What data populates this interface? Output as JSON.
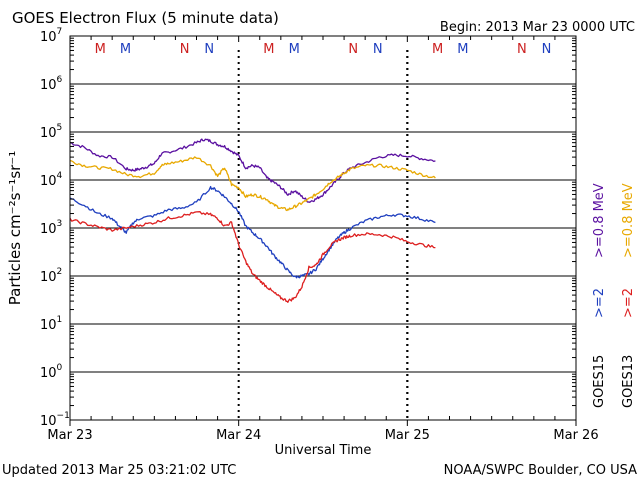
{
  "chart_data": {
    "type": "line",
    "title": "GOES Electron Flux (5 minute data)",
    "begin_label": "Begin: 2013 Mar 23 0000 UTC",
    "xlabel": "Universal Time",
    "ylabel": "Particles cm⁻²s⁻¹sr⁻¹",
    "y_scale": "log",
    "ylim": [
      0.1,
      10000000
    ],
    "y_tick_labels": [
      {
        "base": "10",
        "exp": "7"
      },
      {
        "base": "10",
        "exp": "6"
      },
      {
        "base": "10",
        "exp": "5"
      },
      {
        "base": "10",
        "exp": "4"
      },
      {
        "base": "10",
        "exp": "3"
      },
      {
        "base": "10",
        "exp": "2"
      },
      {
        "base": "10",
        "exp": "1"
      },
      {
        "base": "10",
        "exp": "0"
      },
      {
        "base": "10",
        "exp": "-1"
      }
    ],
    "xlim_hours": [
      0,
      72
    ],
    "x_tick_labels": [
      "Mar 23",
      "Mar 24",
      "Mar 25",
      "Mar 26"
    ],
    "threshold": 1000,
    "markers": [
      {
        "label": "M",
        "color": "#cc2020",
        "hour": 4.3
      },
      {
        "label": "M",
        "color": "#1f3fbf",
        "hour": 7.9
      },
      {
        "label": "N",
        "color": "#cc2020",
        "hour": 16.3
      },
      {
        "label": "N",
        "color": "#1f3fbf",
        "hour": 19.8
      },
      {
        "label": "M",
        "color": "#cc2020",
        "hour": 28.3
      },
      {
        "label": "M",
        "color": "#1f3fbf",
        "hour": 31.9
      },
      {
        "label": "N",
        "color": "#cc2020",
        "hour": 40.3
      },
      {
        "label": "N",
        "color": "#1f3fbf",
        "hour": 43.8
      },
      {
        "label": "M",
        "color": "#cc2020",
        "hour": 52.3
      },
      {
        "label": "M",
        "color": "#1f3fbf",
        "hour": 55.9
      },
      {
        "label": "N",
        "color": "#cc2020",
        "hour": 64.3
      },
      {
        "label": "N",
        "color": "#1f3fbf",
        "hour": 67.8
      }
    ],
    "day_separators_hours": [
      24,
      48
    ],
    "side_labels": {
      "goes15": "GOES15",
      "goes13": "GOES13",
      "purple": ">=0.8  MeV",
      "orange": ">=0.8  MeV",
      "blue": ">=2",
      "red": ">=2"
    },
    "colors": {
      "purple": "#5a10a0",
      "orange": "#e8a800",
      "blue": "#1f3fbf",
      "red": "#dd1f1f",
      "threshold": "#000000"
    },
    "series": [
      {
        "name": "GOES15 >=0.8 MeV",
        "color": "#5a10a0",
        "points": [
          [
            0,
            60000
          ],
          [
            2,
            48000
          ],
          [
            4,
            32000
          ],
          [
            6,
            30000
          ],
          [
            8,
            17000
          ],
          [
            9,
            16000
          ],
          [
            10,
            17000
          ],
          [
            11,
            19000
          ],
          [
            12,
            22000
          ],
          [
            13,
            35000
          ],
          [
            14,
            38000
          ],
          [
            16,
            46000
          ],
          [
            18,
            60000
          ],
          [
            19,
            70000
          ],
          [
            20,
            65000
          ],
          [
            21,
            55000
          ],
          [
            22,
            50000
          ],
          [
            23,
            40000
          ],
          [
            24,
            32000
          ],
          [
            25,
            18000
          ],
          [
            26,
            20000
          ],
          [
            27,
            18000
          ],
          [
            28,
            11000
          ],
          [
            29,
            9000
          ],
          [
            30,
            7000
          ],
          [
            31,
            5000
          ],
          [
            32,
            6000
          ],
          [
            33,
            4500
          ],
          [
            34,
            3500
          ],
          [
            35,
            4000
          ],
          [
            36,
            5000
          ],
          [
            37,
            7000
          ],
          [
            38,
            10000
          ],
          [
            39,
            14000
          ],
          [
            40,
            18000
          ],
          [
            42,
            23000
          ],
          [
            44,
            30000
          ],
          [
            46,
            33000
          ],
          [
            48,
            32000
          ],
          [
            50,
            28000
          ],
          [
            52,
            25000
          ]
        ]
      },
      {
        "name": "GOES13 >=0.8 MeV",
        "color": "#e8a800",
        "points": [
          [
            0,
            25000
          ],
          [
            2,
            20000
          ],
          [
            4,
            18000
          ],
          [
            6,
            17000
          ],
          [
            8,
            13000
          ],
          [
            10,
            12000
          ],
          [
            12,
            14000
          ],
          [
            13,
            20000
          ],
          [
            14,
            22000
          ],
          [
            16,
            25000
          ],
          [
            18,
            30000
          ],
          [
            20,
            20000
          ],
          [
            21,
            12000
          ],
          [
            22,
            18000
          ],
          [
            23,
            8000
          ],
          [
            24,
            7000
          ],
          [
            25,
            4500
          ],
          [
            26,
            5000
          ],
          [
            27,
            4500
          ],
          [
            28,
            4000
          ],
          [
            29,
            3000
          ],
          [
            30,
            2600
          ],
          [
            31,
            2400
          ],
          [
            32,
            2800
          ],
          [
            33,
            3300
          ],
          [
            34,
            4000
          ],
          [
            35,
            5000
          ],
          [
            36,
            6500
          ],
          [
            37,
            9000
          ],
          [
            38,
            11000
          ],
          [
            39,
            14000
          ],
          [
            40,
            17000
          ],
          [
            42,
            20000
          ],
          [
            44,
            20000
          ],
          [
            46,
            18000
          ],
          [
            48,
            16000
          ],
          [
            50,
            13000
          ],
          [
            52,
            11000
          ]
        ]
      },
      {
        "name": "GOES15 >=2 MeV",
        "color": "#1f3fbf",
        "points": [
          [
            0,
            4200
          ],
          [
            2,
            3000
          ],
          [
            4,
            2000
          ],
          [
            6,
            1600
          ],
          [
            7,
            1100
          ],
          [
            8,
            800
          ],
          [
            9,
            1300
          ],
          [
            10,
            1600
          ],
          [
            12,
            1800
          ],
          [
            14,
            2400
          ],
          [
            16,
            2600
          ],
          [
            18,
            3400
          ],
          [
            20,
            7000
          ],
          [
            21,
            6000
          ],
          [
            22,
            4500
          ],
          [
            23,
            3200
          ],
          [
            24,
            2200
          ],
          [
            25,
            1100
          ],
          [
            26,
            800
          ],
          [
            27,
            600
          ],
          [
            28,
            420
          ],
          [
            29,
            270
          ],
          [
            30,
            190
          ],
          [
            31,
            130
          ],
          [
            32,
            95
          ],
          [
            33,
            100
          ],
          [
            34,
            110
          ],
          [
            35,
            140
          ],
          [
            36,
            230
          ],
          [
            37,
            380
          ],
          [
            38,
            600
          ],
          [
            39,
            800
          ],
          [
            40,
            1000
          ],
          [
            42,
            1400
          ],
          [
            44,
            1700
          ],
          [
            46,
            1900
          ],
          [
            48,
            1800
          ],
          [
            50,
            1550
          ],
          [
            52,
            1300
          ]
        ]
      },
      {
        "name": "GOES13 >=2 MeV",
        "color": "#dd1f1f",
        "points": [
          [
            0,
            1500
          ],
          [
            2,
            1250
          ],
          [
            4,
            1050
          ],
          [
            6,
            900
          ],
          [
            8,
            1000
          ],
          [
            10,
            1150
          ],
          [
            12,
            1300
          ],
          [
            14,
            1600
          ],
          [
            16,
            1800
          ],
          [
            18,
            2100
          ],
          [
            20,
            1900
          ],
          [
            21,
            1600
          ],
          [
            22,
            1100
          ],
          [
            23,
            1300
          ],
          [
            24,
            450
          ],
          [
            25,
            200
          ],
          [
            26,
            110
          ],
          [
            27,
            80
          ],
          [
            28,
            60
          ],
          [
            29,
            45
          ],
          [
            30,
            35
          ],
          [
            31,
            30
          ],
          [
            32,
            35
          ],
          [
            33,
            60
          ],
          [
            34,
            150
          ],
          [
            35,
            170
          ],
          [
            36,
            280
          ],
          [
            37,
            420
          ],
          [
            38,
            550
          ],
          [
            39,
            630
          ],
          [
            40,
            700
          ],
          [
            42,
            750
          ],
          [
            44,
            730
          ],
          [
            46,
            650
          ],
          [
            48,
            520
          ],
          [
            50,
            450
          ],
          [
            52,
            390
          ]
        ]
      }
    ]
  },
  "footer": {
    "updated": "Updated 2013 Mar 25 03:21:02 UTC",
    "credit": "NOAA/SWPC Boulder, CO USA"
  }
}
